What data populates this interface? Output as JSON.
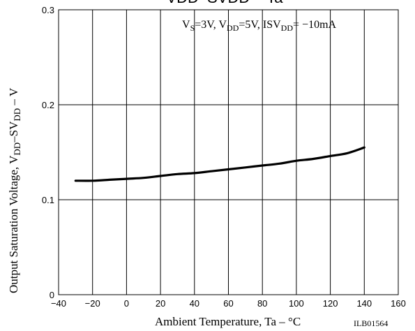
{
  "chart_data": {
    "type": "line",
    "title": "VDD–SVDD – Ta",
    "annotation": "VS=3V, VDD=5V, ISVDD= −10mA",
    "xlabel": "Ambient Temperature, Ta  –  °C",
    "ylabel": "Output Saturation Voltage, VDD–SVDD  –  V",
    "xlim": [
      -40,
      160
    ],
    "ylim": [
      0,
      0.3
    ],
    "x_ticks": [
      "−40",
      "−20",
      "0",
      "20",
      "40",
      "60",
      "80",
      "100",
      "120",
      "140",
      "160"
    ],
    "y_ticks": [
      "0",
      "0.1",
      "0.2",
      "0.3"
    ],
    "grid": true,
    "series": [
      {
        "x": [
          -30,
          -20,
          -10,
          0,
          10,
          20,
          30,
          40,
          50,
          60,
          70,
          80,
          90,
          100,
          110,
          120,
          130,
          140
        ],
        "values": [
          0.12,
          0.12,
          0.121,
          0.122,
          0.123,
          0.125,
          0.127,
          0.128,
          0.13,
          0.132,
          0.134,
          0.136,
          0.138,
          0.141,
          0.143,
          0.146,
          0.149,
          0.155
        ]
      }
    ]
  },
  "code": "ILB01564"
}
